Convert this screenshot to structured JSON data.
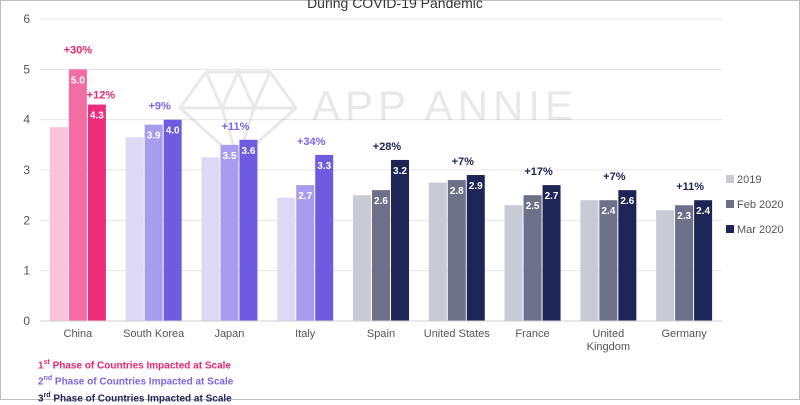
{
  "chart_data": {
    "type": "bar",
    "title": "During COVID-19 Pandemic",
    "watermark": "APP ANNIE",
    "ylim": [
      0,
      6
    ],
    "yticks": [
      0,
      1,
      2,
      3,
      4,
      5,
      6
    ],
    "grid": true,
    "legend_position": "right",
    "categories": [
      "China",
      "South Korea",
      "Japan",
      "Italy",
      "Spain",
      "United States",
      "France",
      "United Kingdom",
      "Germany"
    ],
    "category_label_lines": [
      [
        "China"
      ],
      [
        "South Korea"
      ],
      [
        "Japan"
      ],
      [
        "Italy"
      ],
      [
        "Spain"
      ],
      [
        "United States"
      ],
      [
        "France"
      ],
      [
        "United",
        "Kingdom"
      ],
      [
        "Germany"
      ]
    ],
    "phases": [
      1,
      2,
      2,
      2,
      3,
      3,
      3,
      3,
      3
    ],
    "series": [
      {
        "name": "2019",
        "values": [
          3.85,
          3.65,
          3.25,
          2.45,
          2.5,
          2.75,
          2.3,
          2.4,
          2.2
        ]
      },
      {
        "name": "Feb 2020",
        "values": [
          5.0,
          3.9,
          3.5,
          2.7,
          2.6,
          2.8,
          2.5,
          2.4,
          2.3
        ]
      },
      {
        "name": "Mar 2020",
        "values": [
          4.3,
          4.0,
          3.6,
          3.3,
          3.2,
          2.9,
          2.7,
          2.6,
          2.4
        ]
      }
    ],
    "data_labels": {
      "feb": [
        "5.0",
        "3.9",
        "3.5",
        "2.7",
        "2.6",
        "2.8",
        "2.5",
        "2.4",
        "2.3"
      ],
      "mar": [
        "4.3",
        "4.0",
        "3.6",
        "3.3",
        "3.2",
        "2.9",
        "2.7",
        "2.6",
        "2.4"
      ]
    },
    "growth_labels": [
      {
        "category": "China",
        "text": "+30%",
        "over": "feb"
      },
      {
        "category": "China",
        "text": "+12%",
        "over": "mar"
      },
      {
        "category": "South Korea",
        "text": "+9%",
        "over": "group"
      },
      {
        "category": "Japan",
        "text": "+11%",
        "over": "group"
      },
      {
        "category": "Italy",
        "text": "+34%",
        "over": "group"
      },
      {
        "category": "Spain",
        "text": "+28%",
        "over": "group"
      },
      {
        "category": "United States",
        "text": "+7%",
        "over": "group"
      },
      {
        "category": "France",
        "text": "+17%",
        "over": "group"
      },
      {
        "category": "United Kingdom",
        "text": "+7%",
        "over": "group"
      },
      {
        "category": "Germany",
        "text": "+11%",
        "over": "group"
      }
    ],
    "phase_colors": {
      "1": [
        "#fac3d8",
        "#f56ba3",
        "#ed2d7b"
      ],
      "2": [
        "#dcd8f5",
        "#a79def",
        "#6e5ce0"
      ],
      "3": [
        "#c8cbd6",
        "#6c7189",
        "#1d2456"
      ]
    },
    "growth_colors": {
      "1": "#e8266f",
      "2": "#7a65e8",
      "3": "#1d2456"
    },
    "legend_swatches": [
      "#c8cbd6",
      "#6c7189",
      "#1d2456"
    ]
  },
  "phase_legend": [
    {
      "ordinal": "1",
      "suffix": "st",
      "text": " Phase of Countries Impacted at Scale",
      "color": "#e8266f"
    },
    {
      "ordinal": "2",
      "suffix": "nd",
      "text": " Phase of Countries Impacted at Scale",
      "color": "#7a65e8"
    },
    {
      "ordinal": "3",
      "suffix": "rd",
      "text": " Phase of Countries Impacted at Scale",
      "color": "#1d2456"
    }
  ]
}
